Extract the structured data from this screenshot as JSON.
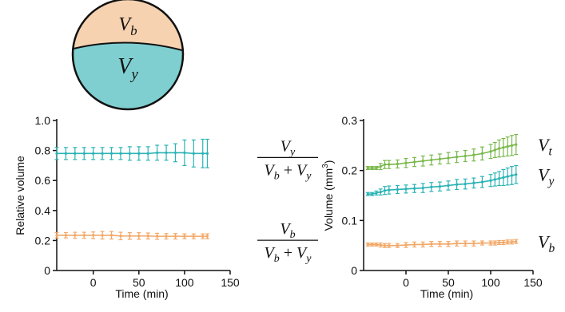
{
  "diagram": {
    "top_label": "V_b",
    "bottom_label": "V_y",
    "colors": {
      "top": "#f7d2b0",
      "bottom": "#7fcfd0",
      "outline": "#111111"
    }
  },
  "chart_data": [
    {
      "type": "line",
      "ylabel": "Relative volume",
      "xlabel": "Time (min)",
      "xlim": [
        -40,
        150
      ],
      "ylim": [
        0,
        1.0
      ],
      "xticks": [
        0,
        50,
        100,
        150
      ],
      "yticks": [
        "0",
        "0.2",
        "0.4",
        "0.6",
        "0.8",
        "1.0"
      ],
      "grid": false,
      "series": [
        {
          "color": "#2bb3b5",
          "label_num": "V_y",
          "label_den": "V_b + V_y",
          "x": [
            -40,
            -30,
            -20,
            -10,
            0,
            10,
            20,
            30,
            40,
            50,
            60,
            70,
            80,
            90,
            100,
            110,
            120,
            125
          ],
          "y": [
            0.78,
            0.78,
            0.78,
            0.78,
            0.78,
            0.78,
            0.78,
            0.78,
            0.78,
            0.78,
            0.78,
            0.785,
            0.785,
            0.785,
            0.785,
            0.78,
            0.78,
            0.78
          ],
          "err": [
            0.04,
            0.04,
            0.04,
            0.04,
            0.04,
            0.04,
            0.04,
            0.04,
            0.045,
            0.045,
            0.045,
            0.05,
            0.05,
            0.06,
            0.085,
            0.09,
            0.095,
            0.095
          ]
        },
        {
          "color": "#f2a766",
          "label_num": "V_b",
          "label_den": "V_b + V_y",
          "x": [
            -40,
            -30,
            -20,
            -10,
            0,
            10,
            20,
            30,
            40,
            50,
            60,
            70,
            80,
            90,
            100,
            110,
            120,
            125
          ],
          "y": [
            0.235,
            0.235,
            0.235,
            0.235,
            0.235,
            0.235,
            0.235,
            0.23,
            0.23,
            0.23,
            0.23,
            0.228,
            0.228,
            0.228,
            0.228,
            0.228,
            0.228,
            0.228
          ],
          "err": [
            0.018,
            0.018,
            0.02,
            0.02,
            0.022,
            0.025,
            0.025,
            0.025,
            0.022,
            0.022,
            0.02,
            0.02,
            0.018,
            0.018,
            0.016,
            0.016,
            0.016,
            0.016
          ]
        }
      ]
    },
    {
      "type": "line",
      "ylabel": "Volume (mm",
      "ylabel_sup": "3",
      "ylabel_end": ")",
      "xlabel": "Time (min)",
      "xlim": [
        -50,
        150
      ],
      "ylim": [
        0,
        0.3
      ],
      "xticks": [
        0,
        50,
        100,
        150
      ],
      "yticks": [
        "0",
        "0.1",
        "0.2",
        "0.3"
      ],
      "grid": false,
      "series": [
        {
          "color": "#79b84a",
          "label": "V_t",
          "x": [
            -45,
            -40,
            -35,
            -30,
            -25,
            -20,
            -10,
            0,
            10,
            20,
            30,
            40,
            50,
            60,
            70,
            80,
            90,
            100,
            105,
            110,
            115,
            120,
            125,
            130
          ],
          "y": [
            0.205,
            0.205,
            0.205,
            0.208,
            0.212,
            0.212,
            0.213,
            0.215,
            0.217,
            0.219,
            0.221,
            0.223,
            0.225,
            0.227,
            0.229,
            0.231,
            0.234,
            0.238,
            0.241,
            0.244,
            0.246,
            0.248,
            0.25,
            0.252
          ],
          "err": [
            0.003,
            0.003,
            0.003,
            0.006,
            0.008,
            0.008,
            0.008,
            0.009,
            0.009,
            0.01,
            0.01,
            0.01,
            0.011,
            0.011,
            0.011,
            0.012,
            0.013,
            0.014,
            0.015,
            0.017,
            0.018,
            0.019,
            0.02,
            0.02
          ]
        },
        {
          "color": "#2bb3b5",
          "label": "V_y",
          "x": [
            -45,
            -40,
            -35,
            -30,
            -25,
            -20,
            -10,
            0,
            10,
            20,
            30,
            40,
            50,
            60,
            70,
            80,
            90,
            100,
            105,
            110,
            115,
            120,
            125,
            130
          ],
          "y": [
            0.153,
            0.153,
            0.155,
            0.157,
            0.16,
            0.161,
            0.162,
            0.163,
            0.164,
            0.165,
            0.167,
            0.168,
            0.17,
            0.172,
            0.173,
            0.175,
            0.177,
            0.18,
            0.182,
            0.184,
            0.186,
            0.188,
            0.19,
            0.192
          ],
          "err": [
            0.003,
            0.003,
            0.004,
            0.006,
            0.008,
            0.008,
            0.008,
            0.008,
            0.008,
            0.009,
            0.009,
            0.009,
            0.009,
            0.01,
            0.01,
            0.01,
            0.011,
            0.012,
            0.013,
            0.014,
            0.016,
            0.017,
            0.018,
            0.018
          ]
        },
        {
          "color": "#f2a766",
          "label": "V_b",
          "x": [
            -45,
            -40,
            -35,
            -30,
            -25,
            -20,
            -10,
            0,
            10,
            20,
            30,
            40,
            50,
            60,
            70,
            80,
            90,
            100,
            105,
            110,
            115,
            120,
            125,
            130
          ],
          "y": [
            0.052,
            0.052,
            0.052,
            0.051,
            0.05,
            0.05,
            0.05,
            0.051,
            0.052,
            0.052,
            0.053,
            0.053,
            0.053,
            0.054,
            0.054,
            0.054,
            0.055,
            0.055,
            0.055,
            0.056,
            0.056,
            0.057,
            0.057,
            0.058
          ],
          "err": [
            0.003,
            0.003,
            0.003,
            0.004,
            0.004,
            0.004,
            0.004,
            0.005,
            0.005,
            0.005,
            0.005,
            0.005,
            0.005,
            0.005,
            0.005,
            0.005,
            0.004,
            0.004,
            0.004,
            0.004,
            0.004,
            0.004,
            0.004,
            0.004
          ]
        }
      ]
    }
  ]
}
